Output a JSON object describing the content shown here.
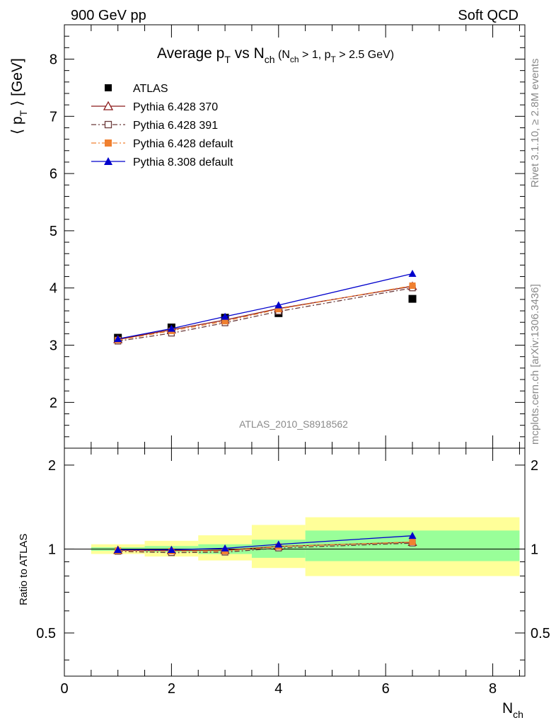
{
  "header": {
    "left": "900 GeV pp",
    "right": "Soft QCD"
  },
  "side": {
    "rivet": "Rivet 3.1.10, ≥ 2.8M events",
    "mcplots": "mcplots.cern.ch [arXiv:1306.3436]"
  },
  "chart_data": [
    {
      "type": "line",
      "title_main": "Average p",
      "title_sub_T": "T",
      "title_vs": " vs N",
      "title_sub_ch": "ch",
      "title_cond": " (N",
      "title_cond_ch": "ch",
      "title_cond_mid": " > 1, p",
      "title_cond_T": "T",
      "title_cond_end": " > 2.5 GeV)",
      "ylabel": "⟨ p",
      "ylabel_sub": "T",
      "ylabel_end": " ⟩ [GeV]",
      "watermark": "ATLAS_2010_S8918562",
      "xlim": [
        0,
        8.6
      ],
      "ylim": [
        1.2,
        8.6
      ],
      "yticks": [
        "2",
        "3",
        "4",
        "5",
        "6",
        "7",
        "8"
      ],
      "x": [
        1,
        2,
        3,
        4,
        6.5
      ],
      "series": [
        {
          "name": "ATLAS",
          "color": "#000000",
          "marker": "square-filled",
          "line": "none",
          "values": [
            3.13,
            3.31,
            3.48,
            3.56,
            3.81
          ],
          "errors": [
            0.03,
            0.03,
            0.03,
            0.03,
            0.03
          ]
        },
        {
          "name": "Pythia 6.428 370",
          "color": "#8b1a1a",
          "marker": "triangle-open",
          "line": "solid",
          "values": [
            3.1,
            3.27,
            3.44,
            3.64,
            4.03
          ]
        },
        {
          "name": "Pythia 6.428 391",
          "color": "#6b3a3a",
          "marker": "square-open",
          "line": "dashdot",
          "values": [
            3.07,
            3.21,
            3.39,
            3.59,
            4.0
          ]
        },
        {
          "name": "Pythia 6.428 default",
          "color": "#f08030",
          "marker": "square-filled",
          "line": "dashdot",
          "values": [
            3.09,
            3.25,
            3.42,
            3.63,
            4.04
          ]
        },
        {
          "name": "Pythia 8.308 default",
          "color": "#0000cc",
          "marker": "triangle-filled",
          "line": "solid",
          "values": [
            3.11,
            3.29,
            3.5,
            3.7,
            4.25
          ]
        }
      ]
    },
    {
      "type": "line",
      "ylabel": "Ratio to ATLAS",
      "xlabel": "N",
      "xlabel_sub": "ch",
      "xlim": [
        0,
        8.6
      ],
      "ylim": [
        0.35,
        2.3
      ],
      "yscale": "log",
      "yticks": [
        "0.5",
        "1",
        "2"
      ],
      "xticks": [
        "0",
        "2",
        "4",
        "6",
        "8"
      ],
      "bands": [
        {
          "xlo": 0.5,
          "xhi": 1.5,
          "stat_lo": 0.985,
          "stat_hi": 1.015,
          "tot_lo": 0.96,
          "tot_hi": 1.04
        },
        {
          "xlo": 1.5,
          "xhi": 2.5,
          "stat_lo": 0.975,
          "stat_hi": 1.025,
          "tot_lo": 0.94,
          "tot_hi": 1.07
        },
        {
          "xlo": 2.5,
          "xhi": 3.5,
          "stat_lo": 0.96,
          "stat_hi": 1.04,
          "tot_lo": 0.91,
          "tot_hi": 1.12
        },
        {
          "xlo": 3.5,
          "xhi": 4.5,
          "stat_lo": 0.93,
          "stat_hi": 1.08,
          "tot_lo": 0.855,
          "tot_hi": 1.22
        },
        {
          "xlo": 4.5,
          "xhi": 8.5,
          "stat_lo": 0.905,
          "stat_hi": 1.165,
          "tot_lo": 0.8,
          "tot_hi": 1.3
        }
      ],
      "band_colors": {
        "stat": "#99ff99",
        "total": "#ffff99"
      },
      "x": [
        1,
        2,
        3,
        4,
        6.5
      ],
      "series": [
        {
          "name": "Pythia 6.428 370",
          "color": "#8b1a1a",
          "marker": "triangle-open",
          "line": "solid",
          "values": [
            0.99,
            0.988,
            0.99,
            1.022,
            1.058
          ]
        },
        {
          "name": "Pythia 6.428 391",
          "color": "#6b3a3a",
          "marker": "square-open",
          "line": "dashdot",
          "values": [
            0.981,
            0.97,
            0.974,
            1.008,
            1.05
          ]
        },
        {
          "name": "Pythia 6.428 default",
          "color": "#f08030",
          "marker": "square-filled",
          "line": "dashdot",
          "values": [
            0.987,
            0.982,
            0.983,
            1.02,
            1.06
          ]
        },
        {
          "name": "Pythia 8.308 default",
          "color": "#0000cc",
          "marker": "triangle-filled",
          "line": "solid",
          "values": [
            0.994,
            0.994,
            1.006,
            1.039,
            1.116
          ]
        }
      ]
    }
  ]
}
